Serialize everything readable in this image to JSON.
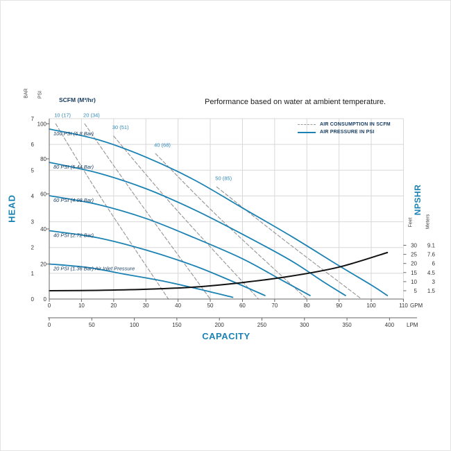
{
  "title": "Performance based on water at ambient temperature.",
  "labels": {
    "scfm": "SCFM (M³/hr)"
  },
  "legend": [
    {
      "label": "AIR CONSUMPTION IN SCFM",
      "style": "dashed"
    },
    {
      "label": "AIR PRESSURE IN PSI",
      "style": "solid"
    }
  ],
  "axes": {
    "left_outer_label": "BAR",
    "left_inner_label": "PSI",
    "left_title": "HEAD",
    "bar_ticks": [
      7,
      6,
      5,
      4,
      3,
      2,
      1,
      0
    ],
    "psi_ticks": [
      100,
      80,
      60,
      40,
      20,
      0
    ],
    "x_title": "CAPACITY",
    "gpm_ticks": [
      0,
      10,
      20,
      30,
      40,
      50,
      60,
      70,
      80,
      90,
      100,
      110
    ],
    "gpm_unit": "GPM",
    "lpm_ticks": [
      0,
      50,
      100,
      150,
      200,
      250,
      300,
      350,
      400
    ],
    "lpm_unit": "LPM",
    "right_title": "NPSHR",
    "feet_label": "Feet",
    "meters_label": "Meters",
    "feet_ticks": [
      30,
      25,
      20,
      15,
      10,
      5
    ],
    "meters_ticks": [
      "9.1",
      "7.6",
      "6",
      "4.5",
      "3",
      "1.5"
    ]
  },
  "colors": {
    "accent": "#1b82b3",
    "navy": "#14395f",
    "consumption_label": "#2f88b8",
    "grid": "#d8d8d8",
    "axis": "#666666",
    "dashed": "#9b9b9b",
    "black_curve": "#111111",
    "text": "#333333"
  },
  "chart_data": {
    "type": "line",
    "title": "Performance based on water at ambient temperature.",
    "xlabel": "CAPACITY",
    "x_units": [
      "GPM",
      "LPM"
    ],
    "x_range_gpm": [
      0,
      110
    ],
    "y_left_units": [
      "PSI",
      "BAR"
    ],
    "y_left_range_psi": [
      0,
      100
    ],
    "y_left_range_bar": [
      0,
      7
    ],
    "y_right_unit_feet_range": [
      5,
      30
    ],
    "grid": true,
    "legend_position": "top-right",
    "pressure_curves": [
      {
        "label": "100 PSI (6.8 Bar)",
        "points": [
          [
            0,
            97
          ],
          [
            15,
            91
          ],
          [
            30,
            81
          ],
          [
            45,
            68
          ],
          [
            60,
            52
          ],
          [
            75,
            36
          ],
          [
            90,
            19
          ],
          [
            100,
            8
          ],
          [
            105,
            2
          ]
        ]
      },
      {
        "label": "80 PSI (5.44 Bar)",
        "points": [
          [
            0,
            78
          ],
          [
            15,
            72
          ],
          [
            30,
            63
          ],
          [
            45,
            51
          ],
          [
            60,
            37
          ],
          [
            75,
            22
          ],
          [
            85,
            10
          ],
          [
            92,
            2
          ]
        ]
      },
      {
        "label": "60 PSI (4.08 Bar)",
        "points": [
          [
            0,
            59
          ],
          [
            15,
            54
          ],
          [
            30,
            46
          ],
          [
            45,
            35
          ],
          [
            60,
            23
          ],
          [
            72,
            11
          ],
          [
            81,
            2
          ]
        ]
      },
      {
        "label": "40 PSI (2.72 Bar)",
        "points": [
          [
            0,
            39
          ],
          [
            15,
            35
          ],
          [
            30,
            28
          ],
          [
            45,
            19
          ],
          [
            57,
            10
          ],
          [
            67,
            2
          ]
        ]
      },
      {
        "label": "20 PSI (1.36 Bar) Air Inlet Pressure",
        "points": [
          [
            0,
            20
          ],
          [
            12,
            18
          ],
          [
            24,
            14
          ],
          [
            36,
            10
          ],
          [
            48,
            5
          ],
          [
            57,
            1
          ]
        ]
      }
    ],
    "consumption_curves": [
      {
        "label": "10 (17)",
        "points": [
          [
            2,
            100
          ],
          [
            16,
            58
          ],
          [
            37,
            0
          ]
        ]
      },
      {
        "label": "20 (34)",
        "points": [
          [
            11,
            100
          ],
          [
            27,
            58
          ],
          [
            50,
            0
          ]
        ]
      },
      {
        "label": "30 (51)",
        "points": [
          [
            20,
            93
          ],
          [
            39,
            52
          ],
          [
            65,
            0
          ]
        ]
      },
      {
        "label": "40 (68)",
        "points": [
          [
            33,
            83
          ],
          [
            53,
            46
          ],
          [
            80,
            0
          ]
        ]
      },
      {
        "label": "50 (85)",
        "points": [
          [
            52,
            64
          ],
          [
            72,
            35
          ],
          [
            97,
            0
          ]
        ]
      }
    ],
    "npshr_curve": {
      "points_gpm_feet": [
        [
          0,
          5
        ],
        [
          15,
          5.2
        ],
        [
          30,
          5.8
        ],
        [
          45,
          7
        ],
        [
          60,
          9.5
        ],
        [
          75,
          13
        ],
        [
          90,
          18
        ],
        [
          105,
          26
        ]
      ]
    }
  }
}
